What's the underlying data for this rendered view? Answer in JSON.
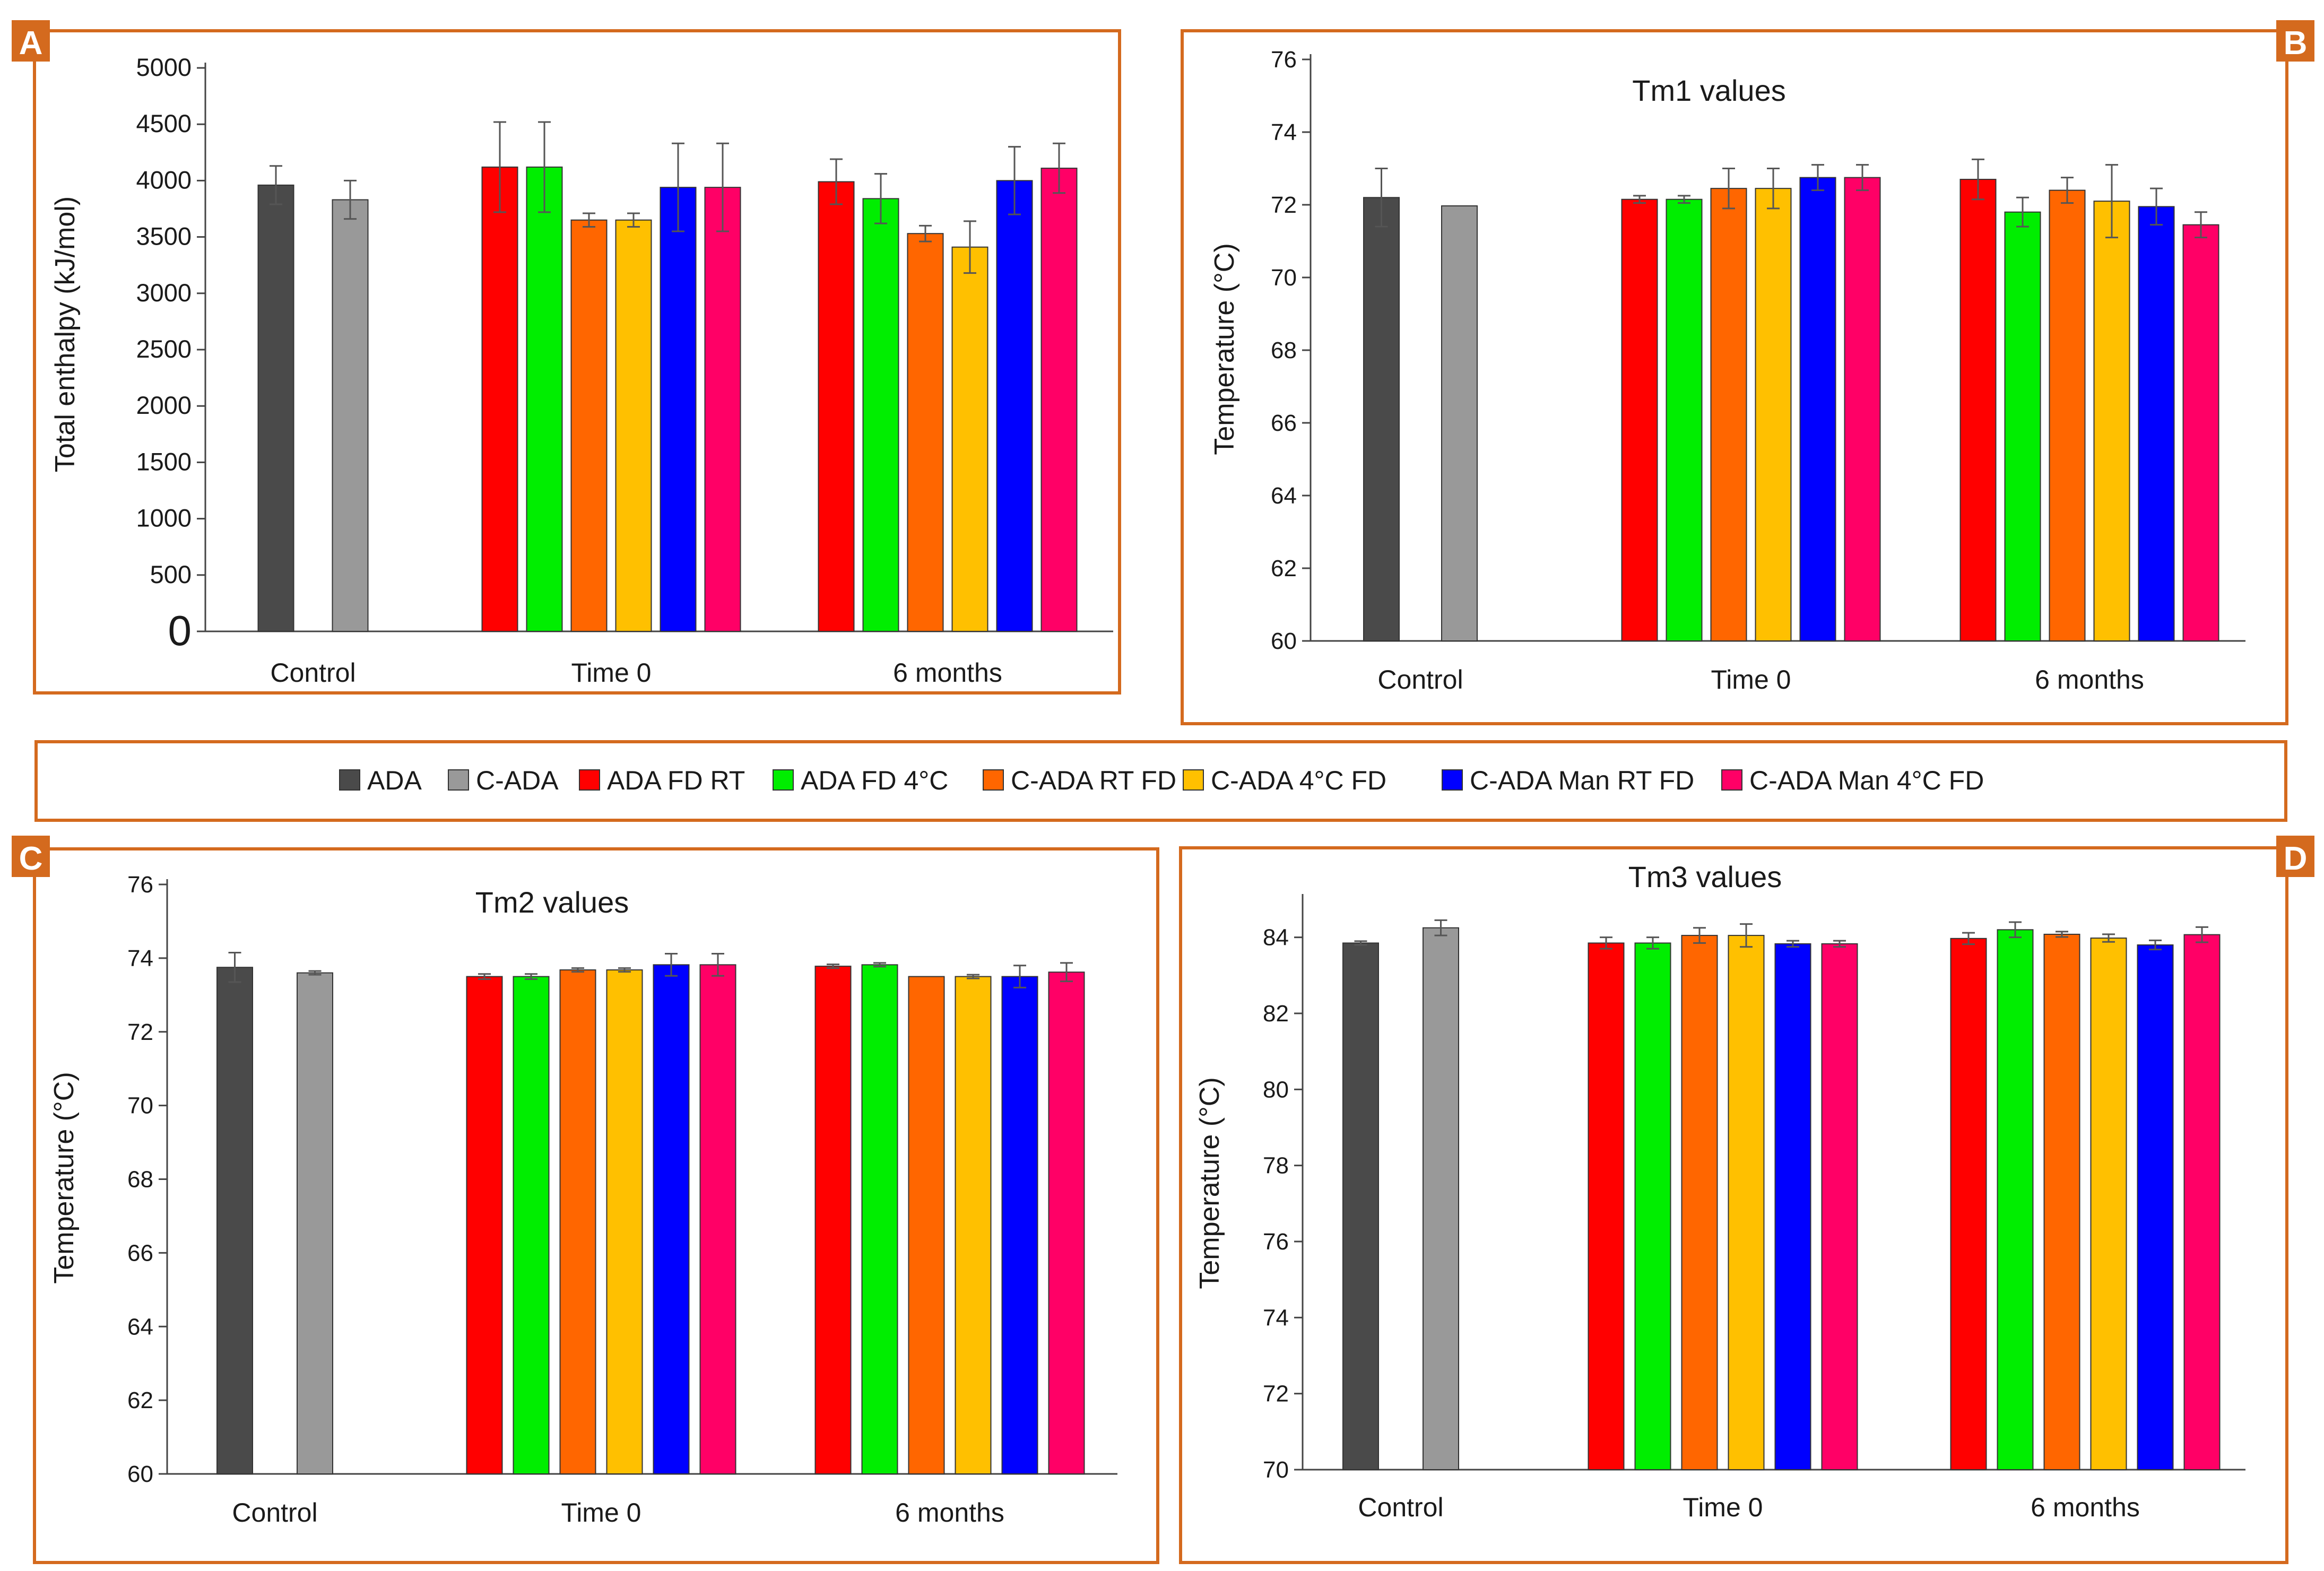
{
  "colors": {
    "panel_border": "#D46A1E",
    "badge": "#D46A1E",
    "axis": "#444444",
    "error_bar": "#555555",
    "bar_outline": "#333333"
  },
  "panels": [
    "A",
    "B",
    "C",
    "D"
  ],
  "legend": [
    {
      "name": "ADA",
      "color": "#4A4A4A"
    },
    {
      "name": "C-ADA",
      "color": "#999999"
    },
    {
      "name": "ADA FD RT",
      "color": "#FF0000"
    },
    {
      "name": "ADA FD 4°C",
      "color": "#00EE00"
    },
    {
      "name": "C-ADA RT FD",
      "color": "#FF6600"
    },
    {
      "name": "C-ADA 4°C FD",
      "color": "#FFC000"
    },
    {
      "name": "C-ADA Man RT FD",
      "color": "#0000FF"
    },
    {
      "name": "C-ADA Man 4°C FD",
      "color": "#FF0066"
    }
  ],
  "chart_data": [
    {
      "panel": "A",
      "type": "bar",
      "title": "",
      "ylabel": "Total enthalpy (kJ/mol)",
      "xlabel": "",
      "ylim": [
        0,
        5000
      ],
      "yticks": [
        "0",
        "500",
        "1000",
        "1500",
        "2000",
        "2500",
        "3000",
        "3500",
        "4000",
        "4500",
        "5000"
      ],
      "groups": [
        {
          "label": "Control",
          "bars": [
            {
              "series": "ADA",
              "value": 3960,
              "err": 170
            },
            {
              "series": "C-ADA",
              "value": 3830,
              "err": 170
            }
          ]
        },
        {
          "label": "Time 0",
          "bars": [
            {
              "series": "ADA FD RT",
              "value": 4120,
              "err": 400
            },
            {
              "series": "ADA FD 4°C",
              "value": 4120,
              "err": 400
            },
            {
              "series": "C-ADA RT FD",
              "value": 3650,
              "err": 60
            },
            {
              "series": "C-ADA 4°C FD",
              "value": 3650,
              "err": 60
            },
            {
              "series": "C-ADA Man RT FD",
              "value": 3940,
              "err": 390
            },
            {
              "series": "C-ADA Man 4°C FD",
              "value": 3940,
              "err": 390
            }
          ]
        },
        {
          "label": "6 months",
          "bars": [
            {
              "series": "ADA FD RT",
              "value": 3990,
              "err": 200
            },
            {
              "series": "ADA FD 4°C",
              "value": 3840,
              "err": 220
            },
            {
              "series": "C-ADA RT FD",
              "value": 3530,
              "err": 70
            },
            {
              "series": "C-ADA 4°C FD",
              "value": 3410,
              "err": 230
            },
            {
              "series": "C-ADA Man RT FD",
              "value": 4000,
              "err": 300
            },
            {
              "series": "C-ADA Man 4°C FD",
              "value": 4110,
              "err": 220
            }
          ]
        }
      ]
    },
    {
      "panel": "B",
      "type": "bar",
      "title": "Tm1 values",
      "ylabel": "Temperature (°C)",
      "xlabel": "",
      "ylim": [
        60,
        76
      ],
      "yticks": [
        "60",
        "62",
        "64",
        "66",
        "68",
        "70",
        "72",
        "74",
        "76"
      ],
      "groups": [
        {
          "label": "Control",
          "bars": [
            {
              "series": "ADA",
              "value": 72.2,
              "err": 0.8
            },
            {
              "series": "C-ADA",
              "value": 71.97,
              "err": 0
            }
          ]
        },
        {
          "label": "Time 0",
          "bars": [
            {
              "series": "ADA FD RT",
              "value": 72.15,
              "err": 0.1
            },
            {
              "series": "ADA FD 4°C",
              "value": 72.15,
              "err": 0.1
            },
            {
              "series": "C-ADA RT FD",
              "value": 72.45,
              "err": 0.55
            },
            {
              "series": "C-ADA 4°C FD",
              "value": 72.45,
              "err": 0.55
            },
            {
              "series": "C-ADA Man RT FD",
              "value": 72.75,
              "err": 0.35
            },
            {
              "series": "C-ADA Man 4°C FD",
              "value": 72.75,
              "err": 0.35
            }
          ]
        },
        {
          "label": "6 months",
          "bars": [
            {
              "series": "ADA FD RT",
              "value": 72.7,
              "err": 0.55
            },
            {
              "series": "ADA FD 4°C",
              "value": 71.8,
              "err": 0.4
            },
            {
              "series": "C-ADA RT FD",
              "value": 72.4,
              "err": 0.35
            },
            {
              "series": "C-ADA 4°C FD",
              "value": 72.1,
              "err": 1.0
            },
            {
              "series": "C-ADA Man RT FD",
              "value": 71.95,
              "err": 0.5
            },
            {
              "series": "C-ADA Man 4°C FD",
              "value": 71.45,
              "err": 0.35
            }
          ]
        }
      ]
    },
    {
      "panel": "C",
      "type": "bar",
      "title": "Tm2 values",
      "ylabel": "Temperature (°C)",
      "xlabel": "",
      "ylim": [
        60,
        76
      ],
      "yticks": [
        "60",
        "62",
        "64",
        "66",
        "68",
        "70",
        "72",
        "74",
        "76"
      ],
      "groups": [
        {
          "label": "Control",
          "bars": [
            {
              "series": "ADA",
              "value": 73.75,
              "err": 0.4
            },
            {
              "series": "C-ADA",
              "value": 73.6,
              "err": 0.05
            }
          ]
        },
        {
          "label": "Time 0",
          "bars": [
            {
              "series": "ADA FD RT",
              "value": 73.5,
              "err": 0.07
            },
            {
              "series": "ADA FD 4°C",
              "value": 73.5,
              "err": 0.07
            },
            {
              "series": "C-ADA RT FD",
              "value": 73.68,
              "err": 0.05
            },
            {
              "series": "C-ADA 4°C FD",
              "value": 73.68,
              "err": 0.05
            },
            {
              "series": "C-ADA Man RT FD",
              "value": 73.82,
              "err": 0.3
            },
            {
              "series": "C-ADA Man 4°C FD",
              "value": 73.82,
              "err": 0.3
            }
          ]
        },
        {
          "label": "6 months",
          "bars": [
            {
              "series": "ADA FD RT",
              "value": 73.78,
              "err": 0.05
            },
            {
              "series": "ADA FD 4°C",
              "value": 73.82,
              "err": 0.05
            },
            {
              "series": "C-ADA RT FD",
              "value": 73.5,
              "err": 0
            },
            {
              "series": "C-ADA 4°C FD",
              "value": 73.5,
              "err": 0.05
            },
            {
              "series": "C-ADA Man RT FD",
              "value": 73.5,
              "err": 0.3
            },
            {
              "series": "C-ADA Man 4°C FD",
              "value": 73.62,
              "err": 0.25
            }
          ]
        }
      ]
    },
    {
      "panel": "D",
      "type": "bar",
      "title": "Tm3 values",
      "ylabel": "Temperature (°C)",
      "xlabel": "",
      "ylim": [
        70,
        85
      ],
      "yticks": [
        "70",
        "72",
        "74",
        "76",
        "78",
        "80",
        "82",
        "84"
      ],
      "groups": [
        {
          "label": "Control",
          "bars": [
            {
              "series": "ADA",
              "value": 83.85,
              "err": 0.05
            },
            {
              "series": "C-ADA",
              "value": 84.25,
              "err": 0.2
            }
          ]
        },
        {
          "label": "Time 0",
          "bars": [
            {
              "series": "ADA FD RT",
              "value": 83.85,
              "err": 0.15
            },
            {
              "series": "ADA FD 4°C",
              "value": 83.85,
              "err": 0.15
            },
            {
              "series": "C-ADA RT FD",
              "value": 84.05,
              "err": 0.2
            },
            {
              "series": "C-ADA 4°C FD",
              "value": 84.05,
              "err": 0.3
            },
            {
              "series": "C-ADA Man RT FD",
              "value": 83.83,
              "err": 0.08
            },
            {
              "series": "C-ADA Man 4°C FD",
              "value": 83.83,
              "err": 0.08
            }
          ]
        },
        {
          "label": "6 months",
          "bars": [
            {
              "series": "ADA FD RT",
              "value": 83.97,
              "err": 0.15
            },
            {
              "series": "ADA FD 4°C",
              "value": 84.2,
              "err": 0.2
            },
            {
              "series": "C-ADA RT FD",
              "value": 84.08,
              "err": 0.07
            },
            {
              "series": "C-ADA 4°C FD",
              "value": 83.98,
              "err": 0.1
            },
            {
              "series": "C-ADA Man RT FD",
              "value": 83.8,
              "err": 0.12
            },
            {
              "series": "C-ADA Man 4°C FD",
              "value": 84.07,
              "err": 0.2
            }
          ]
        }
      ]
    }
  ]
}
